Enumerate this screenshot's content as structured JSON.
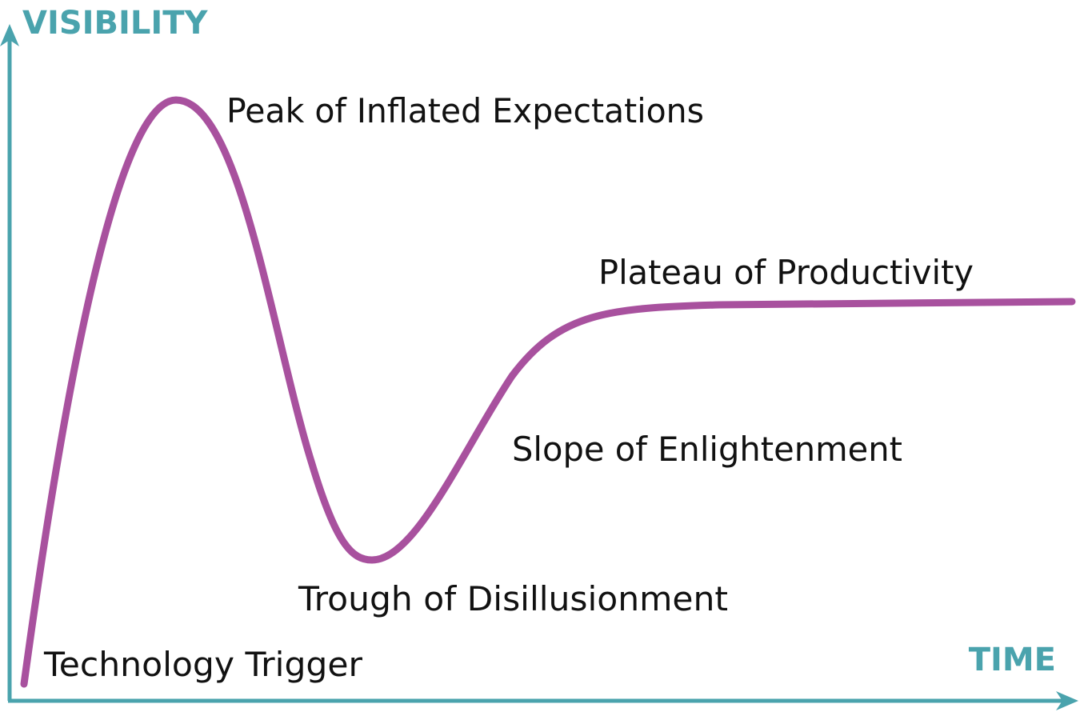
{
  "axes": {
    "y_label": "VISIBILITY",
    "x_label": "TIME"
  },
  "phases": [
    {
      "label": "Technology Trigger"
    },
    {
      "label": "Peak of Inflated Expectations"
    },
    {
      "label": "Trough of Disillusionment"
    },
    {
      "label": "Slope of Enlightenment"
    },
    {
      "label": "Plateau of Productivity"
    }
  ]
}
